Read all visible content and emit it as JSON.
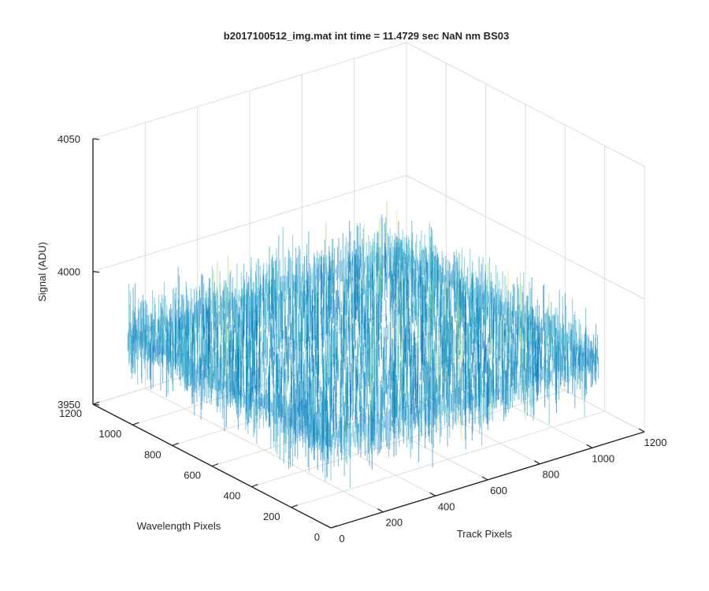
{
  "chart_data": {
    "type": "surface",
    "title": "b2017100512_img.mat int time = 11.4729 sec  NaN nm BS03",
    "xlabel": "Track Pixels",
    "ylabel": "Wavelength Pixels",
    "zlabel": "Signal (ADU)",
    "xlim": [
      0,
      1200
    ],
    "ylim": [
      0,
      1200
    ],
    "zlim": [
      3950,
      4050
    ],
    "x_ticks": [
      "0",
      "200",
      "400",
      "600",
      "800",
      "1000",
      "1200"
    ],
    "y_ticks": [
      "0",
      "200",
      "400",
      "600",
      "800",
      "1000",
      "1200"
    ],
    "z_ticks": [
      "3950",
      "4000",
      "4050"
    ],
    "grid": true,
    "surface": {
      "x_range": [
        0,
        1024
      ],
      "y_range": [
        0,
        1024
      ],
      "mean": 3983,
      "noise_range": [
        3958,
        4012
      ],
      "colormap": "parula"
    },
    "colors": {
      "low": "#0072bd",
      "mid": "#1fa8c9",
      "high": "#a6d96a",
      "top": "#e8e05a",
      "axis": "#262626",
      "grid": "#dcdcdc"
    }
  }
}
